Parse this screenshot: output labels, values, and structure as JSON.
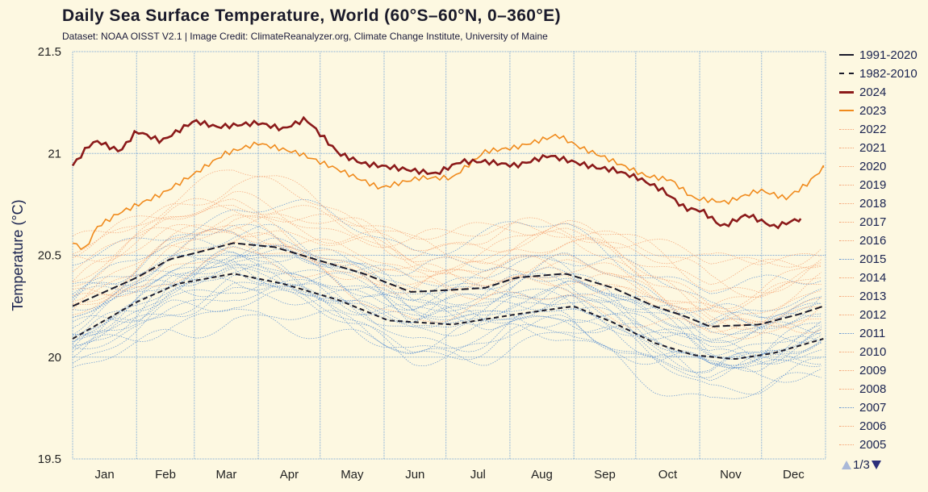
{
  "title": "Daily Sea Surface Temperature, World (60°S–60°N, 0–360°E)",
  "subtitle": "Dataset: NOAA OISST V2.1 | Image Credit: ClimateReanalyzer.org, Climate Change Institute, University of Maine",
  "pager": {
    "label": "1/3",
    "up_icon": "triangle-up",
    "down_icon": "triangle-down"
  },
  "chart_data": {
    "type": "line",
    "ylabel": "Temperature (°C)",
    "ylim": [
      19.5,
      21.5
    ],
    "yticks": [
      "19.5",
      "20",
      "20.5",
      "21",
      "21.5"
    ],
    "xticks": [
      "Jan",
      "Feb",
      "Mar",
      "Apr",
      "May",
      "Jun",
      "Jul",
      "Aug",
      "Sep",
      "Oct",
      "Nov",
      "Dec"
    ],
    "grid": true,
    "legend_placement": "right",
    "colors": {
      "mean": "#1a1a2a",
      "y2024": "#8b1a1a",
      "y2023": "#f08a1c",
      "older_years": "#5b8fd0",
      "recent_years": "#f4a070",
      "grid": "#7aa7d6"
    },
    "series": [
      {
        "name": "1991-2020",
        "style": "solid",
        "points": [
          [
            "01-01",
            20.25
          ],
          [
            "02-01",
            20.39
          ],
          [
            "02-17",
            20.48
          ],
          [
            "03-01",
            20.51
          ],
          [
            "03-20",
            20.56
          ],
          [
            "04-09",
            20.54
          ],
          [
            "05-02",
            20.47
          ],
          [
            "05-22",
            20.41
          ],
          [
            "06-14",
            20.32
          ],
          [
            "07-04",
            20.33
          ],
          [
            "07-20",
            20.34
          ],
          [
            "08-04",
            20.39
          ],
          [
            "08-28",
            20.41
          ],
          [
            "09-20",
            20.34
          ],
          [
            "10-10",
            20.25
          ],
          [
            "10-25",
            20.2
          ],
          [
            "11-06",
            20.15
          ],
          [
            "11-30",
            20.16
          ],
          [
            "12-19",
            20.21
          ],
          [
            "12-31",
            20.25
          ]
        ]
      },
      {
        "name": "1982-2010",
        "style": "dashed",
        "points": [
          [
            "01-01",
            20.09
          ],
          [
            "02-01",
            20.27
          ],
          [
            "02-21",
            20.36
          ],
          [
            "03-20",
            20.41
          ],
          [
            "04-13",
            20.36
          ],
          [
            "05-10",
            20.28
          ],
          [
            "06-03",
            20.18
          ],
          [
            "07-04",
            20.16
          ],
          [
            "08-04",
            20.21
          ],
          [
            "09-01",
            20.25
          ],
          [
            "09-20",
            20.17
          ],
          [
            "10-10",
            20.07
          ],
          [
            "10-29",
            20.01
          ],
          [
            "11-18",
            19.99
          ],
          [
            "12-07",
            20.02
          ],
          [
            "12-31",
            20.09
          ]
        ]
      },
      {
        "name": "2024",
        "style": "thick",
        "points": [
          [
            "01-01",
            20.94
          ],
          [
            "01-09",
            21.04
          ],
          [
            "01-13",
            21.06
          ],
          [
            "01-24",
            21.01
          ],
          [
            "02-01",
            21.11
          ],
          [
            "02-13",
            21.06
          ],
          [
            "03-01",
            21.16
          ],
          [
            "03-12",
            21.13
          ],
          [
            "04-01",
            21.15
          ],
          [
            "04-13",
            21.12
          ],
          [
            "04-24",
            21.17
          ],
          [
            "05-10",
            21.0
          ],
          [
            "05-22",
            20.95
          ],
          [
            "06-06",
            20.93
          ],
          [
            "06-26",
            20.9
          ],
          [
            "07-08",
            20.96
          ],
          [
            "07-20",
            20.96
          ],
          [
            "08-04",
            20.94
          ],
          [
            "08-20",
            20.99
          ],
          [
            "09-04",
            20.95
          ],
          [
            "09-12",
            20.93
          ],
          [
            "09-20",
            20.92
          ],
          [
            "10-02",
            20.88
          ],
          [
            "10-14",
            20.82
          ],
          [
            "10-25",
            20.73
          ],
          [
            "11-02",
            20.72
          ],
          [
            "11-12",
            20.64
          ],
          [
            "11-24",
            20.7
          ],
          [
            "12-07",
            20.64
          ],
          [
            "12-20",
            20.68
          ]
        ]
      },
      {
        "name": "2023",
        "style": "medium",
        "points": [
          [
            "01-01",
            20.56
          ],
          [
            "01-07",
            20.53
          ],
          [
            "01-13",
            20.64
          ],
          [
            "01-24",
            20.71
          ],
          [
            "02-13",
            20.8
          ],
          [
            "03-01",
            20.9
          ],
          [
            "03-16",
            21.0
          ],
          [
            "04-01",
            21.05
          ],
          [
            "04-21",
            21.0
          ],
          [
            "05-10",
            20.92
          ],
          [
            "05-30",
            20.83
          ],
          [
            "06-18",
            20.88
          ],
          [
            "07-04",
            20.88
          ],
          [
            "07-20",
            21.01
          ],
          [
            "08-04",
            21.03
          ],
          [
            "08-24",
            21.09
          ],
          [
            "09-04",
            21.03
          ],
          [
            "09-16",
            20.98
          ],
          [
            "10-06",
            20.89
          ],
          [
            "10-18",
            20.87
          ],
          [
            "10-29",
            20.78
          ],
          [
            "11-14",
            20.76
          ],
          [
            "11-30",
            20.82
          ],
          [
            "12-13",
            20.78
          ],
          [
            "12-23",
            20.85
          ],
          [
            "12-31",
            20.93
          ]
        ]
      }
    ],
    "other_years_offset_from_1991_2020": {
      "2022": 0.2,
      "2021": 0.18,
      "2020": 0.22,
      "2019": 0.25,
      "2018": 0.15,
      "2017": 0.2,
      "2016": 0.28,
      "2015": 0.2,
      "2014": 0.1,
      "2013": 0.05,
      "2012": 0.02,
      "2011": -0.03,
      "2010": 0.08,
      "2009": 0.05,
      "2008": -0.08,
      "2007": -0.03,
      "2006": 0.0,
      "2005": 0.03,
      "2004": 0.0,
      "2003": 0.02,
      "2002": 0.0,
      "2001": -0.03,
      "2000": -0.12,
      "1999": -0.12,
      "1998": 0.08,
      "1997": 0.0,
      "1996": -0.15,
      "1995": -0.1,
      "1994": -0.15,
      "1993": -0.18,
      "1992": -0.2,
      "1991": -0.15,
      "1990": -0.12,
      "1989": -0.25,
      "1988": -0.15,
      "1987": -0.12,
      "1986": -0.25,
      "1985": -0.32,
      "1984": -0.3,
      "1983": -0.15,
      "1982": -0.25
    }
  },
  "legend": [
    {
      "label": "1991-2020",
      "style": "solid",
      "color": "#1a1a2a"
    },
    {
      "label": "1982-2010",
      "style": "dashed",
      "color": "#1a1a2a"
    },
    {
      "label": "2024",
      "style": "thick",
      "color": "#8b1a1a"
    },
    {
      "label": "2023",
      "style": "medium",
      "color": "#f08a1c"
    },
    {
      "label": "2022",
      "style": "dotted",
      "color": "#f4a070"
    },
    {
      "label": "2021",
      "style": "dotted",
      "color": "#f4a070"
    },
    {
      "label": "2020",
      "style": "dotted",
      "color": "#f4a070"
    },
    {
      "label": "2019",
      "style": "dotted",
      "color": "#f4a070"
    },
    {
      "label": "2018",
      "style": "dotted",
      "color": "#f4a070"
    },
    {
      "label": "2017",
      "style": "dotted",
      "color": "#f4a070"
    },
    {
      "label": "2016",
      "style": "dotted",
      "color": "#f4a070"
    },
    {
      "label": "2015",
      "style": "dotted",
      "color": "#5b8fd0"
    },
    {
      "label": "2014",
      "style": "dotted",
      "color": "#f4a070"
    },
    {
      "label": "2013",
      "style": "dotted",
      "color": "#f4a070"
    },
    {
      "label": "2012",
      "style": "dotted",
      "color": "#f4a070"
    },
    {
      "label": "2011",
      "style": "dotted",
      "color": "#5b8fd0"
    },
    {
      "label": "2010",
      "style": "dotted",
      "color": "#f4a070"
    },
    {
      "label": "2009",
      "style": "dotted",
      "color": "#f4a070"
    },
    {
      "label": "2008",
      "style": "dotted",
      "color": "#f4a070"
    },
    {
      "label": "2007",
      "style": "dotted",
      "color": "#5b8fd0"
    },
    {
      "label": "2006",
      "style": "dotted",
      "color": "#f4a070"
    },
    {
      "label": "2005",
      "style": "dotted",
      "color": "#f4a070"
    }
  ]
}
